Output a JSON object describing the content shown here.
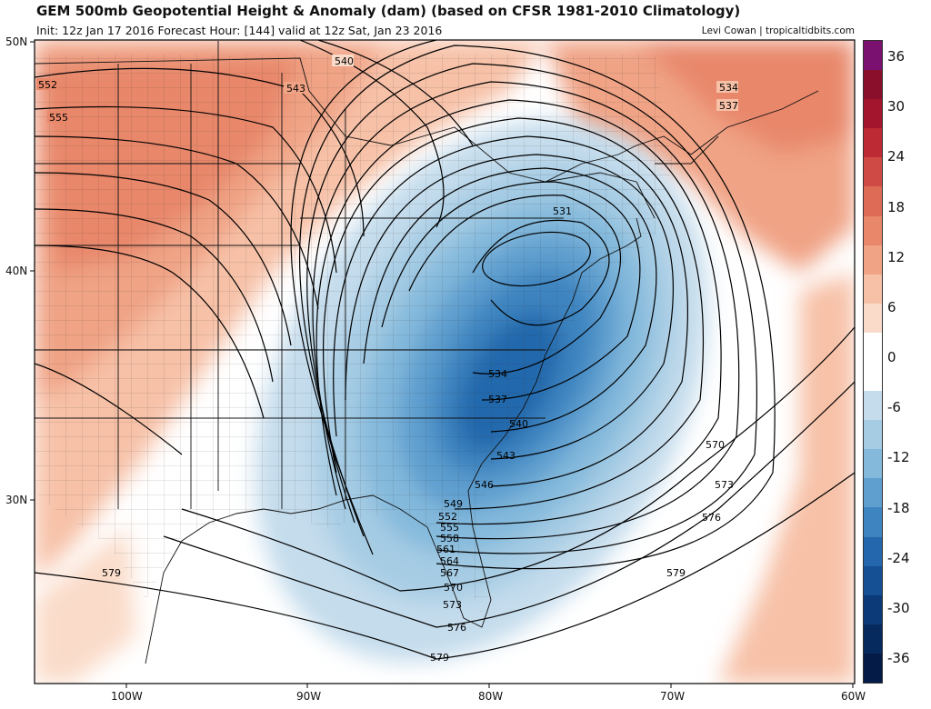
{
  "header": {
    "title": "GEM 500mb Geopotential Height & Anomaly (dam) (based on CFSR 1981-2010 Climatology)",
    "subtitle": "Init: 12z Jan 17 2016   Forecast Hour: [144]   valid at 12z Sat, Jan 23 2016",
    "credit": "Levi Cowan | tropicaltidbits.com"
  },
  "axes": {
    "lat_labels": [
      "50N",
      "40N",
      "30N"
    ],
    "lon_labels": [
      "100W",
      "90W",
      "80W",
      "70W",
      "60W"
    ]
  },
  "colorbar": {
    "labels": [
      "36",
      "30",
      "24",
      "18",
      "12",
      "6",
      "0",
      "-6",
      "-12",
      "-18",
      "-24",
      "-30",
      "-36"
    ],
    "colors": [
      "#7a1070",
      "#8a0f2a",
      "#a3152d",
      "#be2a33",
      "#d04a45",
      "#de6b55",
      "#e8876a",
      "#f0a385",
      "#f7c1a7",
      "#fadbc9",
      "#ffffff",
      "#ffffff",
      "#c4dcec",
      "#a6cce4",
      "#84b9dc",
      "#5e9fcf",
      "#3d84c0",
      "#2467ac",
      "#154f94",
      "#0c3a78",
      "#072a5e",
      "#041a47"
    ]
  },
  "contours": {
    "labels": [
      "540",
      "543",
      "534",
      "537",
      "552",
      "555",
      "531",
      "534",
      "537",
      "540",
      "543",
      "546",
      "549",
      "552",
      "555",
      "558",
      "561",
      "564",
      "567",
      "570",
      "573",
      "576",
      "579",
      "570",
      "573",
      "576",
      "579",
      "579"
    ]
  }
}
